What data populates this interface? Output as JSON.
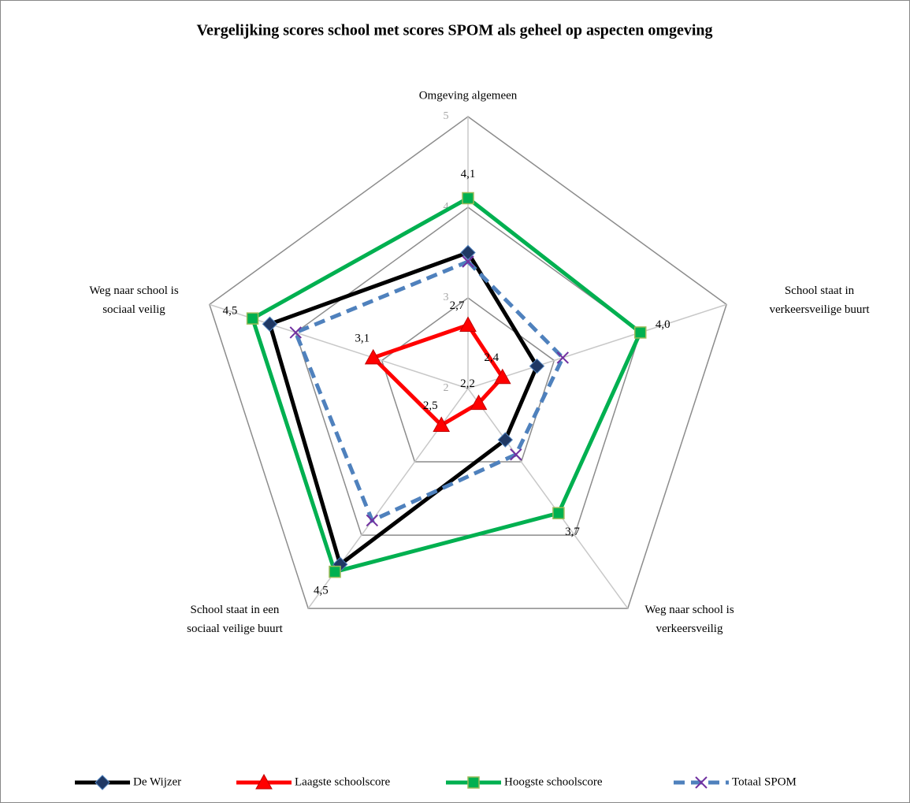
{
  "chart_data": {
    "type": "radar",
    "title": "Vergelijking scores school met scores SPOM als geheel op aspecten omgeving",
    "categories": [
      "Omgeving algemeen",
      "School staat in verkeersveilige buurt",
      "Weg naar school is verkeersveilig",
      "School staat in een sociaal veilige buurt",
      "Weg naar school is sociaal veilig"
    ],
    "rlim": [
      2,
      5
    ],
    "rticks": [
      2,
      3,
      4,
      5
    ],
    "grid": true,
    "legend": "bottom",
    "series": [
      {
        "name": "De Wijzer",
        "color": "#000000",
        "marker": "diamond",
        "marker_color": "#1f3864",
        "values": [
          3.5,
          2.8,
          2.7,
          4.4,
          4.3
        ]
      },
      {
        "name": "Laagste schoolscore",
        "color": "#ff0000",
        "marker": "triangle",
        "marker_color": "#ff0000",
        "values": [
          2.7,
          2.4,
          2.2,
          2.5,
          3.1
        ],
        "value_labels": [
          "2,7",
          "2,4",
          "2,2",
          "2,5",
          "3,1"
        ]
      },
      {
        "name": "Hoogste schoolscore",
        "color": "#00b050",
        "marker": "square",
        "marker_color": "#00b050",
        "values": [
          4.1,
          4.0,
          3.7,
          4.5,
          4.5
        ],
        "value_labels": [
          "4,1",
          "4,0",
          "3,7",
          "4,5",
          "4,5"
        ]
      },
      {
        "name": "Totaal SPOM",
        "color": "#4f81bd",
        "dashed": true,
        "marker": "x",
        "marker_color": "#7030a0",
        "values": [
          3.4,
          3.1,
          2.9,
          3.8,
          4.0
        ]
      }
    ]
  }
}
